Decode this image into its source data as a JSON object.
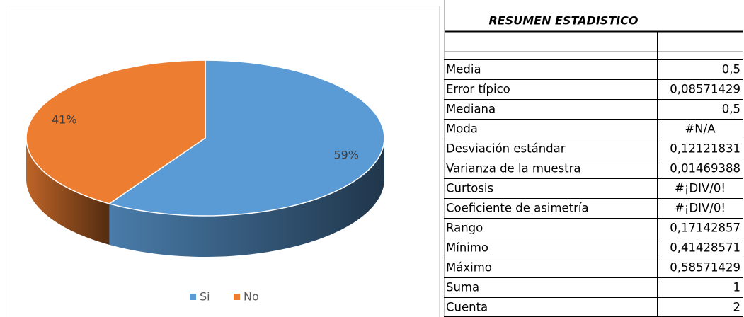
{
  "chart_data": {
    "type": "pie3d",
    "categories": [
      "Si",
      "No"
    ],
    "values": [
      59,
      41
    ],
    "value_labels": [
      "59%",
      "41%"
    ],
    "colors": [
      "#5b9bd5",
      "#ed7d31"
    ],
    "legend": "bottom"
  },
  "table": {
    "title": "RESUMEN ESTADISTICO",
    "rows": [
      [
        "Media",
        "0,5"
      ],
      [
        "Error típico",
        "0,08571429"
      ],
      [
        "Mediana",
        "0,5"
      ],
      [
        "Moda",
        "#N/A"
      ],
      [
        "Desviación estándar",
        "0,12121831"
      ],
      [
        "Varianza de la muestra",
        "0,01469388"
      ],
      [
        "Curtosis",
        "#¡DIV/0!"
      ],
      [
        "Coeficiente de asimetría",
        "#¡DIV/0!"
      ],
      [
        "Rango",
        "0,17142857"
      ],
      [
        "Mínimo",
        "0,41428571"
      ],
      [
        "Máximo",
        "0,58571429"
      ],
      [
        "Suma",
        "1"
      ],
      [
        "Cuenta",
        "2"
      ]
    ]
  }
}
